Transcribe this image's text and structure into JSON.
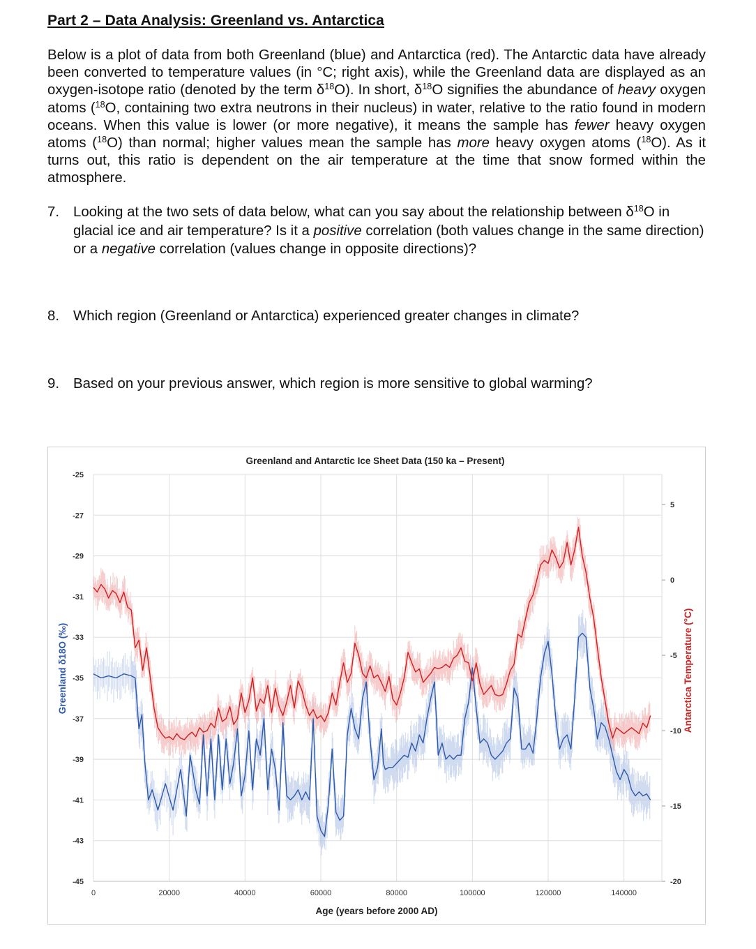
{
  "document": {
    "heading": "Part 2 – Data Analysis: Greenland vs. Antarctica",
    "intro": {
      "p1": "Below is a plot of data from both Greenland (blue) and Antarctica (red). The Antarctic data have already been converted to temperature values (in °C; right axis), while the Greenland data are displayed as an oxygen-isotope ratio (denoted by the term δ",
      "sup1": "18",
      "p2": "O). In short, δ",
      "sup2": "18",
      "p3": "O signifies the abundance of ",
      "em1": "heavy",
      "p4": " oxygen atoms (",
      "sup3": "18",
      "p5": "O, containing two extra neutrons in their nucleus) in water, relative to the ratio found in modern oceans. When this value is lower (or more negative), it means the sample has ",
      "em2": "fewer",
      "p6": " heavy oxygen atoms (",
      "sup4": "18",
      "p7": "O) than normal; higher values mean the sample has ",
      "em3": "more",
      "p8": " heavy oxygen atoms (",
      "sup5": "18",
      "p9": "O). As it turns out, this ratio is dependent on the air temperature at the time that snow formed within the atmosphere."
    },
    "questions": [
      {
        "num": "7.",
        "a": "Looking at the two sets of data below, what can you say about the relationship between δ",
        "sup": "18",
        "b": "O in glacial ice and air temperature? Is it a ",
        "em1": "positive",
        "c": " correlation (both values change in the same direction) or a ",
        "em2": "negative",
        "d": " correlation (values change in opposite directions)?"
      },
      {
        "num": "8.",
        "text": "Which region (Greenland or Antarctica) experienced greater changes in climate?"
      },
      {
        "num": "9.",
        "text": "Based on your previous answer, which region is more sensitive to global warming?"
      }
    ]
  },
  "chart_data": {
    "type": "line",
    "title": "Greenland and Antarctic Ice Sheet Data (150 ka – Present)",
    "xlabel": "Age (years before 2000 AD)",
    "ylabel_left": "Greenland δ18O (‰)",
    "ylabel_right": "Antarctica Temperature (°C)",
    "xlim": [
      0,
      150000
    ],
    "ylim_left": [
      -45,
      -25
    ],
    "ylim_right": [
      -20,
      7
    ],
    "x_ticks": [
      0,
      20000,
      40000,
      60000,
      80000,
      100000,
      120000,
      140000
    ],
    "left_ticks": [
      -25,
      -27,
      -29,
      -31,
      -33,
      -35,
      -37,
      -39,
      -41,
      -43,
      -45
    ],
    "right_ticks": [
      5,
      0,
      -5,
      -10,
      -15,
      -20
    ],
    "grid": true,
    "legend": "none",
    "series": [
      {
        "axis": "left",
        "color": "#2e5aa8",
        "x": [
          0,
          2000,
          4000,
          6000,
          8000,
          10000,
          11000,
          12000,
          12800,
          13500,
          14500,
          15500,
          17000,
          19000,
          21000,
          23000,
          24500,
          25500,
          27000,
          28000,
          29000,
          30000,
          31000,
          32000,
          33000,
          34000,
          35000,
          36000,
          37000,
          38000,
          39000,
          40000,
          41000,
          42000,
          43000,
          44000,
          45000,
          46000,
          47000,
          48000,
          49000,
          50000,
          51000,
          52000,
          53000,
          54000,
          55000,
          56000,
          57000,
          58000,
          59000,
          60000,
          61000,
          62000,
          63000,
          64000,
          65000,
          66000,
          67000,
          68000,
          69000,
          70000,
          71000,
          72000,
          73000,
          74000,
          75000,
          76000,
          76500,
          77000,
          78000,
          79000,
          80000,
          81000,
          82000,
          83000,
          84000,
          85000,
          86000,
          87000,
          88000,
          89000,
          90000,
          91000,
          92000,
          93000,
          94000,
          95000,
          96000,
          97000,
          98000,
          99000,
          100000,
          101000,
          102000,
          103000,
          104000,
          105000,
          106000,
          107000,
          108000,
          109000,
          110000,
          111000,
          112000,
          113000,
          114000,
          115000,
          116000,
          117000,
          118000,
          119000,
          120000,
          121000,
          122000,
          123000,
          124000,
          125000,
          126000,
          127000,
          128000,
          129000,
          130000,
          131000,
          132000,
          133000,
          134000,
          135000,
          136000,
          137000,
          138000,
          139000,
          140000,
          141000,
          142000,
          143000,
          144000,
          145000,
          146000,
          147000
        ],
        "values": [
          -34.8,
          -35.0,
          -34.9,
          -35.0,
          -34.8,
          -34.9,
          -35.0,
          -37.5,
          -36.8,
          -39.0,
          -41.0,
          -40.5,
          -41.5,
          -40.2,
          -41.5,
          -39.5,
          -41.8,
          -38.8,
          -40.5,
          -41.2,
          -37.8,
          -40.8,
          -38.0,
          -41.0,
          -37.8,
          -40.5,
          -38.0,
          -40.2,
          -39.2,
          -37.5,
          -40.8,
          -39.8,
          -37.6,
          -40.5,
          -38.0,
          -38.8,
          -37.0,
          -40.5,
          -38.5,
          -39.5,
          -41.5,
          -37.2,
          -40.8,
          -41.0,
          -40.8,
          -40.5,
          -41.0,
          -40.6,
          -41.0,
          -37.0,
          -41.8,
          -42.5,
          -42.8,
          -41.2,
          -38.5,
          -41.6,
          -42.0,
          -41.8,
          -37.8,
          -36.5,
          -37.5,
          -38.0,
          -36.0,
          -35.2,
          -38.0,
          -40.0,
          -39.4,
          -37.5,
          -39.2,
          -39.5,
          -39.4,
          -39.4,
          -39.2,
          -39.0,
          -38.8,
          -38.9,
          -38.2,
          -38.6,
          -37.8,
          -38.2,
          -37.0,
          -36.0,
          -35.2,
          -38.8,
          -38.2,
          -39.0,
          -38.8,
          -39.0,
          -38.8,
          -38.8,
          -37.0,
          -36.2,
          -34.5,
          -36.5,
          -38.2,
          -38.0,
          -38.2,
          -38.8,
          -39.0,
          -38.8,
          -38.6,
          -38.2,
          -38.0,
          -35.5,
          -36.0,
          -38.5,
          -38.5,
          -38.2,
          -38.7,
          -37.0,
          -35.0,
          -33.8,
          -33.2,
          -34.8,
          -37.0,
          -38.5,
          -38.0,
          -37.8,
          -38.5,
          -36.0,
          -33.0,
          -32.8,
          -33.0,
          -35.5,
          -36.5,
          -38.0,
          -37.2,
          -37.4,
          -38.0,
          -38.8,
          -39.6,
          -40.0,
          -39.5,
          -39.8,
          -40.5,
          -40.8,
          -40.6,
          -40.8,
          -40.7,
          -41.0
        ],
        "note": "values approximate, read off gridlines"
      },
      {
        "axis": "right",
        "color": "#cc2222",
        "x": [
          0,
          1000,
          2000,
          3000,
          4000,
          5000,
          6000,
          7000,
          8000,
          9000,
          10000,
          11000,
          12000,
          13000,
          14000,
          15000,
          16000,
          17000,
          18000,
          19000,
          20000,
          21000,
          22000,
          23000,
          24000,
          25000,
          26000,
          27000,
          28000,
          29000,
          30000,
          31000,
          32000,
          33000,
          34000,
          35000,
          36000,
          37000,
          38000,
          39000,
          40000,
          41000,
          42000,
          43000,
          44000,
          45000,
          46000,
          47000,
          48000,
          49000,
          50000,
          51000,
          52000,
          53000,
          54000,
          55000,
          56000,
          57000,
          58000,
          59000,
          60000,
          61000,
          62000,
          63000,
          64000,
          65000,
          66000,
          67000,
          68000,
          69000,
          70000,
          71000,
          72000,
          73000,
          74000,
          75000,
          76000,
          77000,
          78000,
          79000,
          80000,
          81000,
          82000,
          83000,
          84000,
          85000,
          86000,
          87000,
          88000,
          89000,
          90000,
          91000,
          92000,
          93000,
          94000,
          95000,
          96000,
          97000,
          98000,
          99000,
          100000,
          101000,
          102000,
          103000,
          104000,
          105000,
          106000,
          107000,
          108000,
          109000,
          110000,
          111000,
          112000,
          113000,
          114000,
          115000,
          116000,
          117000,
          118000,
          119000,
          120000,
          121000,
          122000,
          123000,
          124000,
          125000,
          126000,
          127000,
          128000,
          129000,
          130000,
          131000,
          132000,
          133000,
          134000,
          135000,
          136000,
          137000,
          138000,
          139000,
          140000,
          141000,
          142000,
          143000,
          144000,
          145000,
          146000,
          147000
        ],
        "values": [
          -0.5,
          -0.8,
          -0.3,
          -0.6,
          -1.2,
          -0.7,
          -0.9,
          -1.5,
          -0.8,
          -1.8,
          -2.0,
          -4.5,
          -4.0,
          -6.0,
          -4.5,
          -6.5,
          -8.5,
          -9.8,
          -10.2,
          -10.5,
          -10.4,
          -10.6,
          -10.2,
          -10.5,
          -10.6,
          -10.3,
          -10.1,
          -10.4,
          -9.8,
          -10.1,
          -10.0,
          -9.5,
          -9.8,
          -8.5,
          -9.4,
          -9.2,
          -8.4,
          -9.6,
          -9.2,
          -7.5,
          -8.8,
          -8.0,
          -6.5,
          -8.7,
          -7.9,
          -8.2,
          -7.0,
          -8.8,
          -7.2,
          -8.4,
          -9.0,
          -8.1,
          -7.0,
          -8.5,
          -6.7,
          -7.3,
          -8.3,
          -9.0,
          -8.6,
          -9.2,
          -9.0,
          -9.4,
          -8.8,
          -7.5,
          -8.3,
          -6.8,
          -5.5,
          -6.8,
          -6.2,
          -4.2,
          -5.0,
          -6.2,
          -6.5,
          -5.7,
          -6.5,
          -6.3,
          -6.8,
          -7.4,
          -6.4,
          -7.9,
          -8.3,
          -7.5,
          -6.5,
          -4.8,
          -5.5,
          -6.1,
          -5.9,
          -6.8,
          -6.5,
          -6.2,
          -5.8,
          -5.9,
          -5.8,
          -5.6,
          -5.8,
          -5.2,
          -5.0,
          -4.5,
          -5.4,
          -5.5,
          -6.7,
          -5.5,
          -6.9,
          -7.6,
          -7.3,
          -7.0,
          -7.6,
          -7.7,
          -7.6,
          -6.9,
          -6.0,
          -5.6,
          -3.6,
          -3.8,
          -2.6,
          -1.5,
          -1.0,
          0.0,
          1.0,
          1.3,
          1.1,
          2.0,
          1.5,
          0.8,
          1.2,
          2.5,
          1.0,
          2.0,
          3.5,
          1.6,
          0.5,
          -1.2,
          -2.5,
          -4.5,
          -6.5,
          -8.0,
          -9.5,
          -10.5,
          -9.8,
          -10.0,
          -10.2,
          -10.0,
          -9.8,
          -10.0,
          -10.2,
          -9.5,
          -9.8,
          -9.0
        ],
        "note": "values approximate, read off gridlines"
      }
    ]
  }
}
